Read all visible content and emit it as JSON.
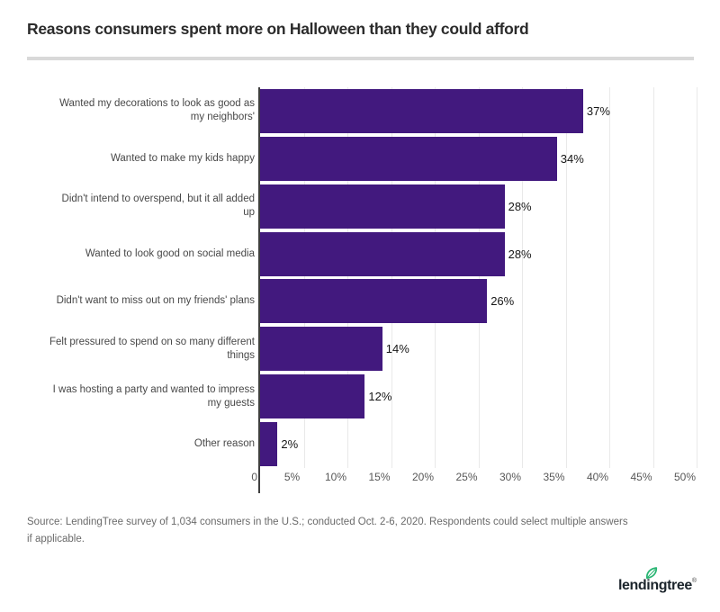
{
  "title": "Reasons consumers spent more on Halloween than they could afford",
  "chart_data": {
    "type": "bar",
    "orientation": "horizontal",
    "title": "Reasons consumers spent more on Halloween than they could afford",
    "categories": [
      "Wanted my decorations to look as good as\nmy neighbors'",
      "Wanted to make my kids happy",
      "Didn't intend to overspend, but it all added\nup",
      "Wanted to look good on social media",
      "Didn't want to miss out on my friends' plans",
      "Felt pressured to spend on so many different\nthings",
      "I was hosting a party and wanted to impress\nmy guests",
      "Other reason"
    ],
    "values": [
      37,
      34,
      28,
      28,
      26,
      14,
      12,
      2
    ],
    "value_labels": [
      "37%",
      "34%",
      "28%",
      "28%",
      "26%",
      "14%",
      "12%",
      "2%"
    ],
    "xlabel": "",
    "ylabel": "",
    "xlim": [
      0,
      50
    ],
    "x_ticks": [
      "0",
      "5%",
      "10%",
      "15%",
      "20%",
      "25%",
      "30%",
      "35%",
      "40%",
      "45%",
      "50%"
    ],
    "grid": true,
    "legend": false,
    "bar_color": "#42197E"
  },
  "source_note": "Source: LendingTree survey of 1,034 consumers in the U.S.; conducted Oct. 2-6, 2020. Respondents could select multiple answers\nif applicable.",
  "logo": {
    "text": "lendingtree",
    "registered_mark": "®"
  },
  "colors": {
    "bar": "#42197E",
    "divider": "#d9d9d9",
    "gridline": "#e9e9e9",
    "axis_line": "#3f3f3f",
    "title_text": "#2b2b2b",
    "category_text": "#484848",
    "value_text": "#161616",
    "tick_text": "#575757",
    "source_text": "#6a6a6a",
    "logo_text": "#1c252c",
    "leaf_green": "#29B573"
  }
}
